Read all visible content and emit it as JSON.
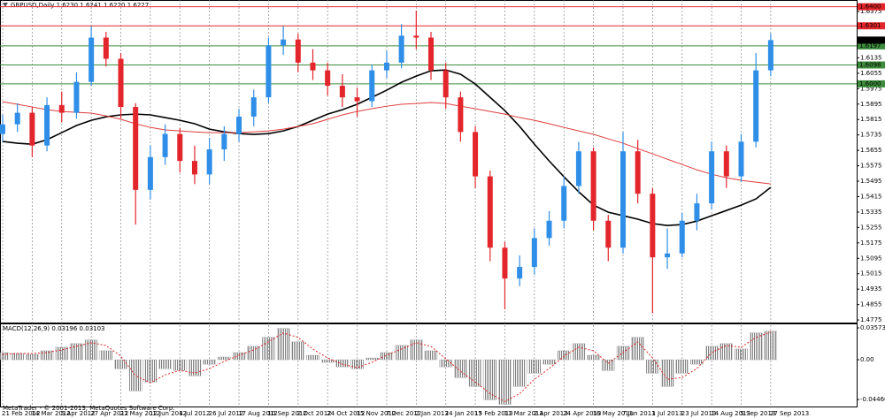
{
  "chart_data": {
    "type": "candlestick",
    "title": "GBPUSD,Daily  1.6230 1.6241 1.6220 1.6227",
    "categories": [
      "21 Feb 2012",
      null,
      "14 Mar 2012",
      null,
      "5 Apr 2012",
      null,
      "27 Apr 2012",
      null,
      "21 May 2012",
      null,
      "12 Jun 2012",
      null,
      "4 Jul 2012",
      null,
      "26 Jul 2012",
      null,
      "17 Aug 2012",
      null,
      "10 Sep 2012",
      null,
      "2 Oct 2012",
      null,
      "24 Oct 2012",
      null,
      "15 Nov 2012",
      null,
      "7 Dec 2012",
      null,
      "2 Jan 2013",
      null,
      "24 Jan 2013",
      null,
      "15 Feb 2013",
      null,
      "11 Mar 2013",
      null,
      "2 Apr 2013",
      null,
      "24 Apr 2013",
      null,
      "16 May 2013",
      null,
      "7 Jun 2013",
      null,
      "1 Jul 2013",
      null,
      "23 Jul 2013",
      null,
      "14 Aug 2013",
      null,
      "5 Sep 2013",
      null,
      "27 Sep 2013"
    ],
    "open": [
      1.574,
      1.579,
      1.585,
      1.568,
      1.589,
      1.585,
      1.601,
      1.624,
      1.613,
      1.588,
      1.545,
      1.562,
      1.574,
      1.56,
      1.553,
      1.566,
      1.574,
      1.583,
      1.593,
      1.62,
      1.623,
      1.611,
      1.607,
      1.599,
      1.593,
      1.591,
      1.607,
      1.611,
      1.625,
      1.624,
      1.607,
      1.593,
      1.575,
      1.552,
      1.515,
      1.499,
      1.505,
      1.52,
      1.529,
      1.547,
      1.565,
      1.529,
      1.515,
      1.565,
      1.543,
      1.51,
      1.512,
      1.529,
      1.538,
      1.565,
      1.552,
      1.57,
      1.607
    ],
    "high": [
      1.584,
      1.59,
      1.588,
      1.593,
      1.596,
      1.606,
      1.63,
      1.627,
      1.616,
      1.59,
      1.568,
      1.579,
      1.577,
      1.568,
      1.572,
      1.578,
      1.587,
      1.597,
      1.624,
      1.63,
      1.626,
      1.618,
      1.611,
      1.605,
      1.598,
      1.61,
      1.617,
      1.631,
      1.638,
      1.627,
      1.611,
      1.596,
      1.578,
      1.555,
      1.518,
      1.511,
      1.525,
      1.534,
      1.552,
      1.57,
      1.567,
      1.532,
      1.575,
      1.571,
      1.546,
      1.525,
      1.533,
      1.543,
      1.57,
      1.568,
      1.574,
      1.616,
      1.626
    ],
    "low": [
      1.57,
      1.575,
      1.562,
      1.565,
      1.58,
      1.582,
      1.599,
      1.609,
      1.582,
      1.527,
      1.54,
      1.558,
      1.554,
      1.548,
      1.548,
      1.56,
      1.57,
      1.578,
      1.59,
      1.615,
      1.606,
      1.602,
      1.594,
      1.588,
      1.583,
      1.588,
      1.603,
      1.608,
      1.618,
      1.602,
      1.587,
      1.57,
      1.546,
      1.508,
      1.483,
      1.495,
      1.501,
      1.516,
      1.525,
      1.543,
      1.524,
      1.508,
      1.512,
      1.538,
      1.481,
      1.504,
      1.51,
      1.524,
      1.535,
      1.546,
      1.549,
      1.567,
      1.604
    ],
    "close": [
      1.579,
      1.585,
      1.568,
      1.589,
      1.585,
      1.601,
      1.624,
      1.613,
      1.588,
      1.545,
      1.562,
      1.574,
      1.56,
      1.553,
      1.566,
      1.574,
      1.583,
      1.593,
      1.62,
      1.623,
      1.611,
      1.607,
      1.599,
      1.593,
      1.591,
      1.607,
      1.611,
      1.625,
      1.624,
      1.607,
      1.593,
      1.575,
      1.552,
      1.515,
      1.499,
      1.505,
      1.52,
      1.529,
      1.547,
      1.565,
      1.529,
      1.515,
      1.565,
      1.543,
      1.51,
      1.512,
      1.529,
      1.538,
      1.565,
      1.552,
      1.57,
      1.607,
      1.6227
    ],
    "up_color": "#2f8fe8",
    "down_color": "#e3262b",
    "overlays": [
      {
        "color": "#000000",
        "values": [
          1.5701,
          1.5692,
          1.5687,
          1.571,
          1.5747,
          1.5784,
          1.5811,
          1.5829,
          1.5839,
          1.5843,
          1.5839,
          1.5825,
          1.5811,
          1.5793,
          1.5765,
          1.5751,
          1.5742,
          1.5738,
          1.5742,
          1.5756,
          1.5779,
          1.5811,
          1.5843,
          1.5866,
          1.5894,
          1.593,
          1.5967,
          1.6008,
          1.604,
          1.6068,
          1.6072,
          1.605,
          1.5999,
          1.593,
          1.5861,
          1.5779,
          1.5687,
          1.56,
          1.5518,
          1.544,
          1.5371,
          1.5334,
          1.5316,
          1.5298,
          1.5275,
          1.5265,
          1.527,
          1.5288,
          1.5316,
          1.5343,
          1.5371,
          1.5403,
          1.5463
        ]
      },
      {
        "color": "#e03c3c",
        "values": [
          1.5907,
          1.5894,
          1.588,
          1.5866,
          1.5857,
          1.5852,
          1.5848,
          1.5834,
          1.5816,
          1.5793,
          1.5774,
          1.5761,
          1.5756,
          1.5751,
          1.5747,
          1.5747,
          1.5747,
          1.5751,
          1.5756,
          1.5765,
          1.5779,
          1.5793,
          1.5816,
          1.5839,
          1.5857,
          1.5871,
          1.5884,
          1.5894,
          1.5898,
          1.5903,
          1.5898,
          1.5884,
          1.5871,
          1.5857,
          1.5843,
          1.5825,
          1.5811,
          1.5793,
          1.5774,
          1.5756,
          1.5738,
          1.5715,
          1.5692,
          1.5664,
          1.5637,
          1.5609,
          1.5582,
          1.5554,
          1.5531,
          1.5513,
          1.5499,
          1.549,
          1.5481
        ]
      }
    ],
    "levels": [
      {
        "value": 1.64,
        "label": "1.6400",
        "color": "#e3262b"
      },
      {
        "value": 1.6301,
        "label": "1.6301",
        "color": "#e3262b"
      },
      {
        "value": 1.6197,
        "label": "1.6197",
        "color": "#3c8c3c"
      },
      {
        "value": 1.6098,
        "label": "1.6098",
        "color": "#3c8c3c"
      },
      {
        "value": 1.6,
        "label": "1.6000",
        "color": "#3c8c3c"
      }
    ],
    "last_price": 1.6227,
    "ylim": [
      1.4757,
      1.6435
    ],
    "yticks": [
      1.6375,
      1.6135,
      1.6055,
      1.5975,
      1.5895,
      1.5815,
      1.5735,
      1.5655,
      1.5575,
      1.5495,
      1.5415,
      1.5335,
      1.5255,
      1.5175,
      1.5095,
      1.5015,
      1.4935,
      1.4855,
      1.4775
    ],
    "vertical_grid": true,
    "indicator": {
      "type": "macd",
      "title": "MACD(12,26,9) 0.03196 0.03103",
      "histogram": [
        0.008,
        0.007,
        0.006,
        0.01,
        0.014,
        0.018,
        0.022,
        0.01,
        -0.01,
        -0.035,
        -0.025,
        -0.01,
        -0.012,
        -0.018,
        -0.005,
        0.003,
        0.008,
        0.015,
        0.025,
        0.035,
        0.02,
        0.005,
        -0.003,
        -0.008,
        -0.01,
        0.002,
        0.008,
        0.016,
        0.022,
        0.01,
        -0.008,
        -0.02,
        -0.03,
        -0.045,
        -0.05,
        -0.03,
        -0.015,
        -0.005,
        0.01,
        0.018,
        0.005,
        -0.012,
        0.015,
        0.025,
        -0.015,
        -0.03,
        -0.015,
        -0.005,
        0.015,
        0.018,
        0.012,
        0.03,
        0.03196
      ],
      "signal": [
        0.006,
        0.007,
        0.007,
        0.008,
        0.011,
        0.015,
        0.019,
        0.016,
        0.004,
        -0.018,
        -0.026,
        -0.017,
        -0.012,
        -0.015,
        -0.01,
        -0.002,
        0.005,
        0.011,
        0.02,
        0.03,
        0.025,
        0.012,
        0.002,
        -0.005,
        -0.009,
        -0.003,
        0.005,
        0.012,
        0.019,
        0.015,
        0.001,
        -0.013,
        -0.025,
        -0.038,
        -0.047,
        -0.038,
        -0.022,
        -0.01,
        0.004,
        0.014,
        0.01,
        -0.004,
        0.008,
        0.02,
        0.002,
        -0.022,
        -0.02,
        -0.01,
        0.008,
        0.016,
        0.014,
        0.025,
        0.03103
      ],
      "histogram_color": "#808080",
      "signal_color": "#e3262b",
      "ylim": [
        -0.0525,
        0.0397
      ],
      "yticks": [
        0.03573,
        {
          "value": 0,
          "label": "0.00"
        },
        -0.04466
      ]
    },
    "footer": "MetaTrader - © 2001-2013, MetaQuotes Software Corp."
  }
}
